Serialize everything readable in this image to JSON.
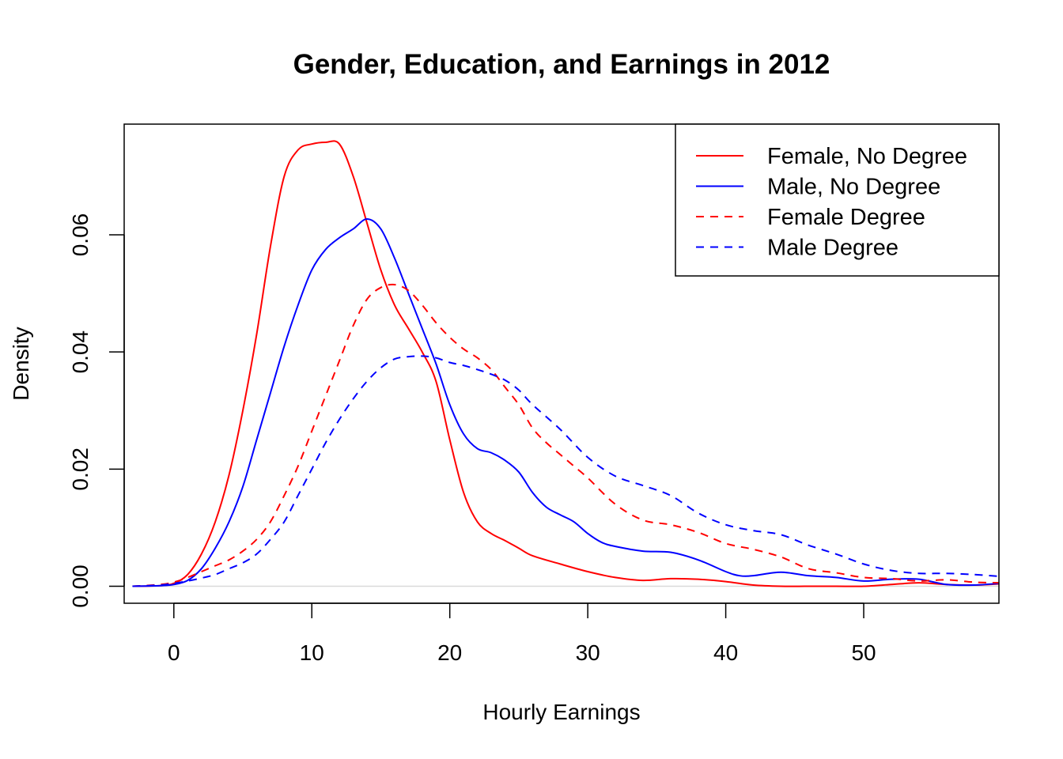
{
  "chart_data": {
    "type": "line",
    "title": "Gender, Education, and Earnings in 2012",
    "xlabel": "Hourly Earnings",
    "ylabel": "Density",
    "xlim": [
      -3.6,
      59.8
    ],
    "ylim": [
      -0.0029,
      0.0789
    ],
    "xticks": [
      0,
      10,
      20,
      30,
      40,
      50
    ],
    "xtick_labels": [
      "0",
      "10",
      "20",
      "30",
      "40",
      "50"
    ],
    "yticks": [
      0,
      0.02,
      0.04,
      0.06
    ],
    "ytick_labels": [
      "0.00",
      "0.02",
      "0.04",
      "0.06"
    ],
    "zero_line": true,
    "grid": false,
    "legend_position": "top-right",
    "series": [
      {
        "name": "Female, No Degree",
        "color": "#ff0000",
        "dash": "solid",
        "x": [
          -3,
          -1,
          0,
          1,
          2,
          3,
          4,
          5,
          6,
          7,
          8,
          9,
          10,
          11,
          12,
          13,
          14,
          15,
          16,
          17,
          18,
          19,
          20,
          21,
          22,
          23,
          24,
          25,
          26,
          28,
          30,
          32,
          34,
          36,
          38,
          40,
          42,
          44,
          46,
          48,
          50,
          52,
          54,
          56,
          58,
          59.8
        ],
        "y": [
          0.0,
          0.0001,
          0.0005,
          0.002,
          0.0055,
          0.011,
          0.019,
          0.03,
          0.043,
          0.058,
          0.07,
          0.0745,
          0.0755,
          0.0758,
          0.0755,
          0.07,
          0.062,
          0.054,
          0.048,
          0.044,
          0.04,
          0.035,
          0.025,
          0.016,
          0.011,
          0.009,
          0.0078,
          0.0065,
          0.0052,
          0.0038,
          0.0025,
          0.0015,
          0.001,
          0.0013,
          0.0012,
          0.0008,
          0.0002,
          0.0,
          0.0,
          0.0,
          0.0,
          0.0003,
          0.0006,
          0.0003,
          0.0002,
          0.0004
        ]
      },
      {
        "name": "Male, No Degree",
        "color": "#0000ff",
        "dash": "solid",
        "x": [
          -3,
          -1,
          0,
          1,
          2,
          3,
          4,
          5,
          6,
          7,
          8,
          9,
          10,
          11,
          12,
          13,
          14,
          15,
          16,
          17,
          18,
          19,
          20,
          21,
          22,
          23,
          24,
          25,
          26,
          27,
          28,
          29,
          30,
          31,
          32,
          34,
          36,
          38,
          40,
          41,
          42,
          44,
          46,
          48,
          50,
          52,
          54,
          56,
          58,
          59.8
        ],
        "y": [
          0.0,
          0.0001,
          0.0003,
          0.001,
          0.003,
          0.0065,
          0.011,
          0.017,
          0.025,
          0.033,
          0.041,
          0.048,
          0.054,
          0.0575,
          0.0595,
          0.061,
          0.0627,
          0.061,
          0.056,
          0.05,
          0.044,
          0.038,
          0.031,
          0.026,
          0.0235,
          0.0228,
          0.0215,
          0.0195,
          0.016,
          0.0135,
          0.0122,
          0.011,
          0.009,
          0.0075,
          0.0068,
          0.006,
          0.0058,
          0.0045,
          0.0025,
          0.0018,
          0.0018,
          0.0024,
          0.0018,
          0.0015,
          0.0009,
          0.0012,
          0.0012,
          0.0003,
          0.0002,
          0.0005
        ]
      },
      {
        "name": "Female Degree",
        "color": "#ff0000",
        "dash": "dashed",
        "x": [
          -3,
          -1,
          0,
          1,
          2,
          3,
          4,
          5,
          6,
          7,
          8,
          9,
          10,
          11,
          12,
          13,
          14,
          15,
          16,
          17,
          18,
          19,
          20,
          21,
          22,
          23,
          24,
          25,
          26,
          27,
          28,
          29,
          30,
          32,
          34,
          36,
          38,
          40,
          42,
          44,
          46,
          48,
          50,
          52,
          54,
          56,
          58,
          59.8
        ],
        "y": [
          0.0,
          0.0003,
          0.0007,
          0.0015,
          0.0025,
          0.0035,
          0.0045,
          0.006,
          0.008,
          0.011,
          0.0155,
          0.0205,
          0.0265,
          0.0325,
          0.0385,
          0.0445,
          0.049,
          0.051,
          0.0515,
          0.0505,
          0.048,
          0.045,
          0.0425,
          0.0405,
          0.039,
          0.037,
          0.034,
          0.031,
          0.027,
          0.0245,
          0.0225,
          0.0205,
          0.0185,
          0.014,
          0.0113,
          0.0105,
          0.0092,
          0.0073,
          0.0063,
          0.005,
          0.003,
          0.0023,
          0.0015,
          0.0013,
          0.0009,
          0.0011,
          0.0007,
          0.0006
        ]
      },
      {
        "name": "Male Degree",
        "color": "#0000ff",
        "dash": "dashed",
        "x": [
          -3,
          -1,
          0,
          1,
          2,
          3,
          4,
          5,
          6,
          7,
          8,
          9,
          10,
          11,
          12,
          13,
          14,
          15,
          16,
          17,
          18,
          19,
          20,
          21,
          22,
          23,
          24,
          25,
          26,
          28,
          30,
          32,
          34,
          36,
          38,
          40,
          42,
          44,
          46,
          48,
          50,
          52,
          54,
          56,
          58,
          59.8
        ],
        "y": [
          0.0,
          0.0002,
          0.0005,
          0.0009,
          0.0014,
          0.002,
          0.003,
          0.004,
          0.0055,
          0.008,
          0.011,
          0.0155,
          0.02,
          0.0245,
          0.0285,
          0.032,
          0.035,
          0.0373,
          0.0388,
          0.0392,
          0.0393,
          0.039,
          0.0382,
          0.0377,
          0.037,
          0.0362,
          0.0352,
          0.0335,
          0.031,
          0.0268,
          0.022,
          0.0188,
          0.0172,
          0.0155,
          0.0125,
          0.0105,
          0.0095,
          0.0088,
          0.007,
          0.0055,
          0.0038,
          0.0027,
          0.0022,
          0.0022,
          0.002,
          0.0017
        ]
      }
    ]
  }
}
